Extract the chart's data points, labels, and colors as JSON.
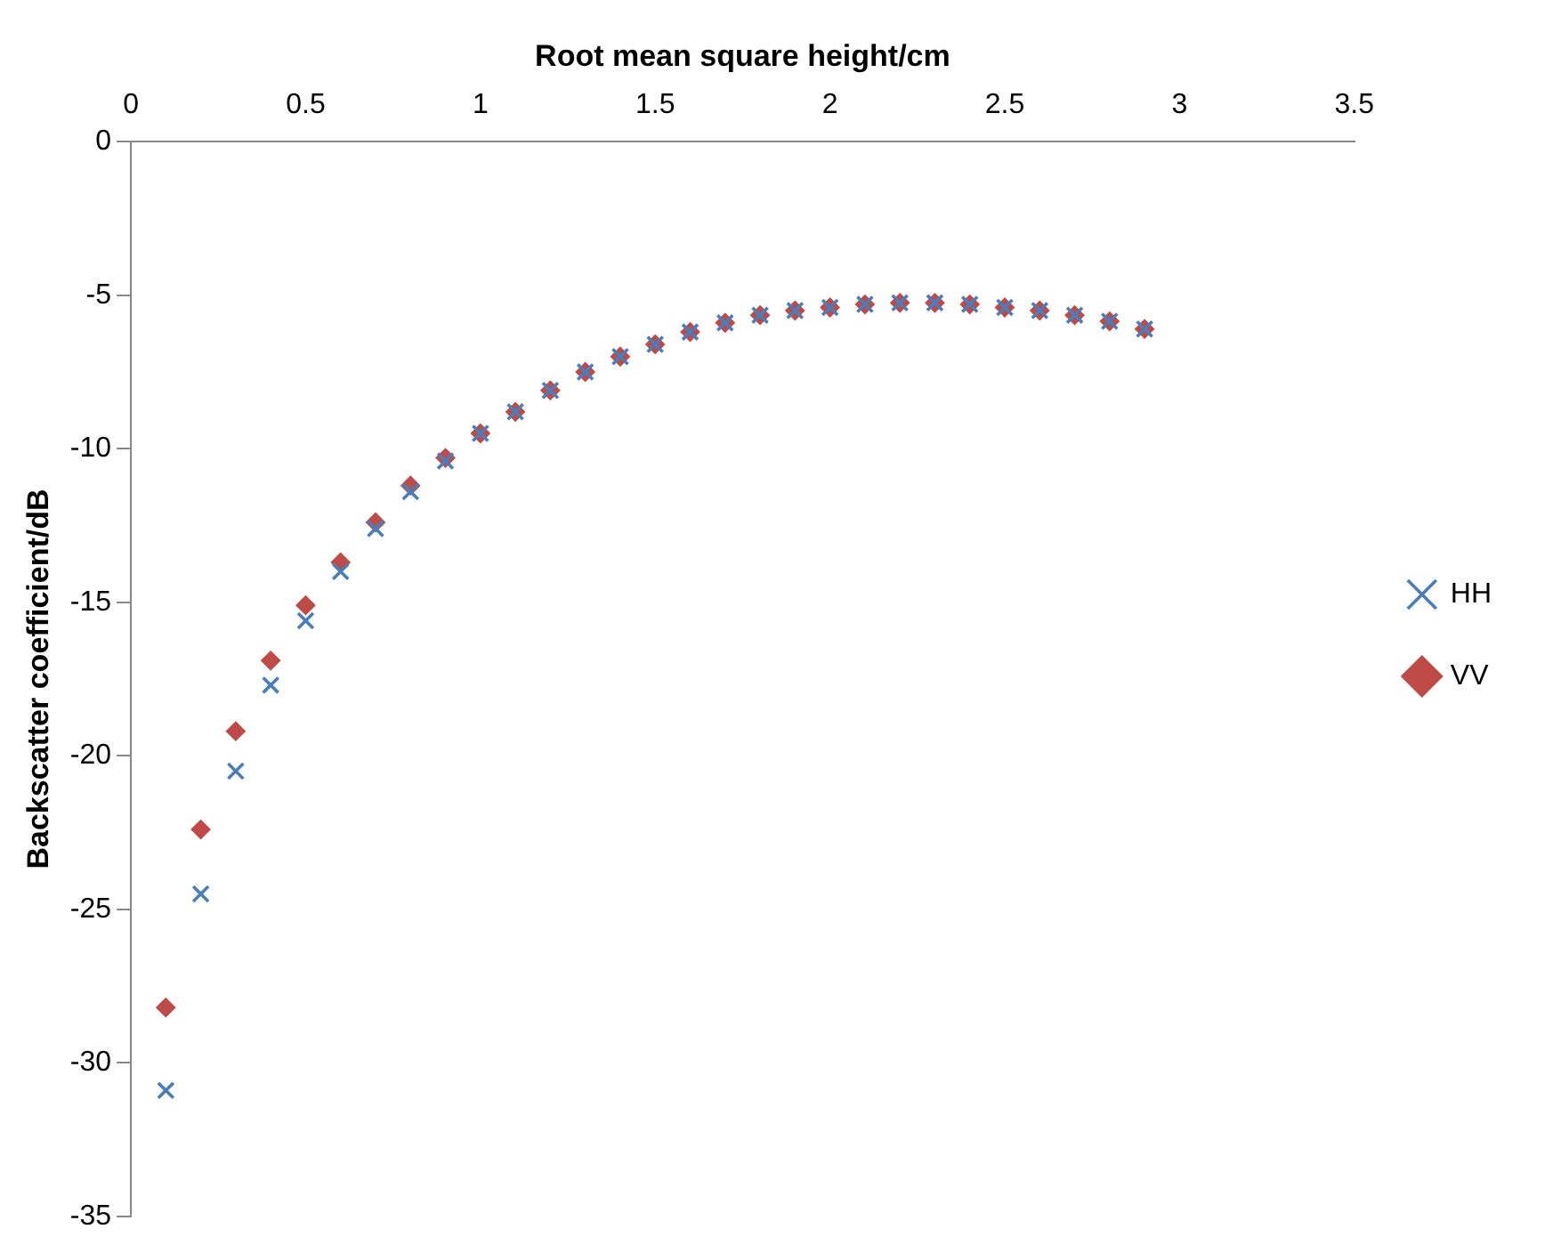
{
  "chart_data": {
    "type": "scatter",
    "xlabel": "Root mean square height/cm",
    "ylabel": "Backscatter coefficient/dB",
    "x": [
      0.1,
      0.2,
      0.3,
      0.4,
      0.5,
      0.6,
      0.7,
      0.8,
      0.9,
      1.0,
      1.1,
      1.2,
      1.3,
      1.4,
      1.5,
      1.6,
      1.7,
      1.8,
      1.9,
      2.0,
      2.1,
      2.2,
      2.3,
      2.4,
      2.5,
      2.6,
      2.7,
      2.8,
      2.9
    ],
    "series": [
      {
        "name": "HH",
        "color": "#4a7ebb",
        "marker": "cross",
        "values": [
          -30.9,
          -24.5,
          -20.5,
          -17.7,
          -15.6,
          -14.0,
          -12.6,
          -11.4,
          -10.4,
          -9.5,
          -8.8,
          -8.1,
          -7.5,
          -7.0,
          -6.6,
          -6.2,
          -5.9,
          -5.65,
          -5.5,
          -5.4,
          -5.3,
          -5.25,
          -5.25,
          -5.3,
          -5.4,
          -5.5,
          -5.65,
          -5.85,
          -6.1
        ]
      },
      {
        "name": "VV",
        "color": "#be4b48",
        "marker": "diamond",
        "values": [
          -28.2,
          -22.4,
          -19.2,
          -16.9,
          -15.1,
          -13.7,
          -12.4,
          -11.2,
          -10.3,
          -9.5,
          -8.8,
          -8.1,
          -7.5,
          -7.0,
          -6.6,
          -6.2,
          -5.9,
          -5.65,
          -5.5,
          -5.4,
          -5.3,
          -5.25,
          -5.25,
          -5.3,
          -5.4,
          -5.5,
          -5.65,
          -5.85,
          -6.1
        ]
      }
    ],
    "xlim": [
      0,
      3.5
    ],
    "xticks": [
      0,
      0.5,
      1,
      1.5,
      2,
      2.5,
      3,
      3.5
    ],
    "ylim": [
      -35,
      0
    ],
    "yticks": [
      -35,
      -30,
      -25,
      -20,
      -15,
      -10,
      -5,
      0
    ],
    "grid": false,
    "legend": "right"
  }
}
